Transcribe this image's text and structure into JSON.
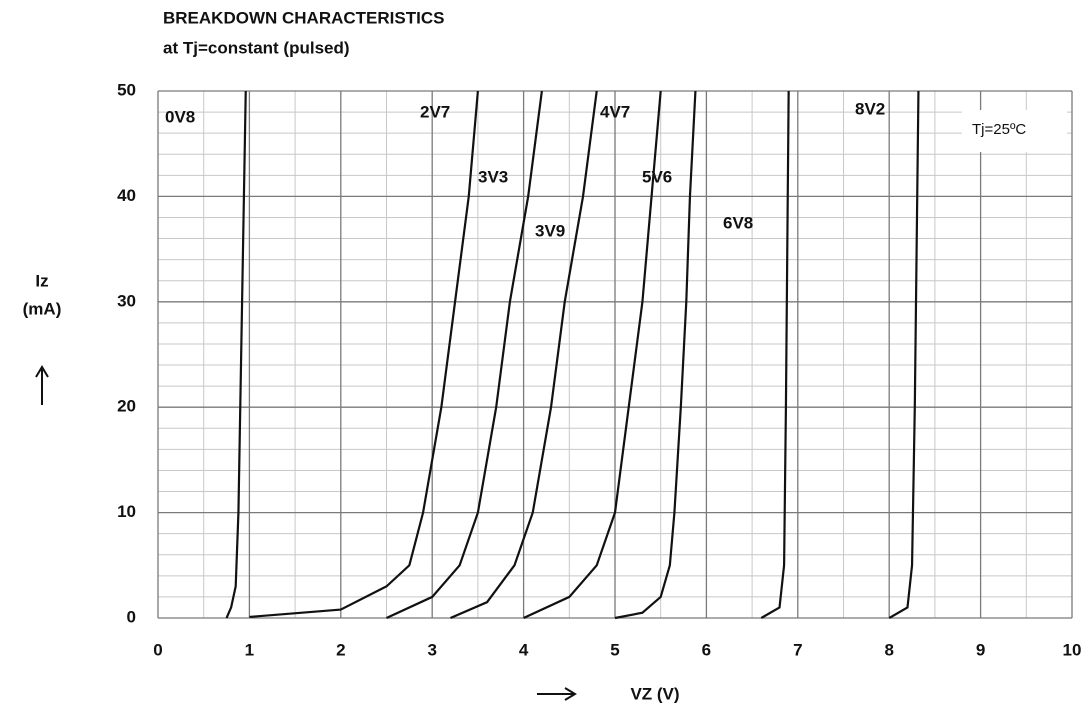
{
  "chart_data": {
    "type": "line",
    "title": "BREAKDOWN CHARACTERISTICS",
    "subtitle": "at Tj=constant (pulsed)",
    "y_label_lines": [
      "Iz",
      "(mA)"
    ],
    "x_label": "VZ (V)",
    "annotation": "Tj=25ºC",
    "xlim": [
      0,
      10
    ],
    "ylim": [
      0,
      50
    ],
    "xticks": [
      0,
      1,
      2,
      3,
      4,
      5,
      6,
      7,
      8,
      9,
      10
    ],
    "yticks": [
      0,
      10,
      20,
      30,
      40,
      50
    ],
    "x_minor_ticks": [
      0.5,
      1.5,
      2.5,
      3.5,
      4.5,
      5.5,
      6.5,
      7.5,
      8.5,
      9.5
    ],
    "y_minor_ticks": [
      2,
      4,
      6,
      8,
      12,
      14,
      16,
      18,
      22,
      24,
      26,
      28,
      32,
      34,
      36,
      38,
      42,
      44,
      46,
      48
    ],
    "grid": true,
    "series": [
      {
        "name": "0V8",
        "color": "#111111",
        "x": [
          0.75,
          0.8,
          0.85,
          0.88,
          0.92,
          0.96
        ],
        "values": [
          0,
          1,
          3,
          10,
          30,
          50
        ]
      },
      {
        "name": "2V7",
        "color": "#111111",
        "x": [
          1.0,
          2.0,
          2.5,
          2.75,
          2.9,
          3.1,
          3.25,
          3.4,
          3.5
        ],
        "values": [
          0.1,
          0.8,
          3,
          5,
          10,
          20,
          30,
          40,
          50
        ]
      },
      {
        "name": "3V3",
        "color": "#111111",
        "x": [
          2.5,
          3.0,
          3.3,
          3.5,
          3.7,
          3.85,
          4.05,
          4.2
        ],
        "values": [
          0,
          2,
          5,
          10,
          20,
          30,
          40,
          50
        ]
      },
      {
        "name": "3V9",
        "color": "#111111",
        "x": [
          3.2,
          3.6,
          3.9,
          4.1,
          4.3,
          4.45,
          4.65,
          4.8
        ],
        "values": [
          0,
          1.5,
          5,
          10,
          20,
          30,
          40,
          50
        ]
      },
      {
        "name": "4V7",
        "color": "#111111",
        "x": [
          4.0,
          4.5,
          4.8,
          5.0,
          5.15,
          5.3,
          5.4,
          5.5
        ],
        "values": [
          0,
          2,
          5,
          10,
          20,
          30,
          40,
          50
        ]
      },
      {
        "name": "5V6",
        "color": "#111111",
        "x": [
          5.0,
          5.3,
          5.5,
          5.6,
          5.65,
          5.72,
          5.78,
          5.82,
          5.88
        ],
        "values": [
          0,
          0.5,
          2,
          5,
          10,
          20,
          30,
          40,
          50
        ]
      },
      {
        "name": "6V8",
        "color": "#111111",
        "x": [
          6.6,
          6.8,
          6.85,
          6.87,
          6.9
        ],
        "values": [
          0,
          1,
          5,
          20,
          50
        ]
      },
      {
        "name": "8V2",
        "color": "#111111",
        "x": [
          8.0,
          8.2,
          8.25,
          8.28,
          8.32
        ],
        "values": [
          0,
          1,
          5,
          20,
          50
        ]
      }
    ]
  }
}
